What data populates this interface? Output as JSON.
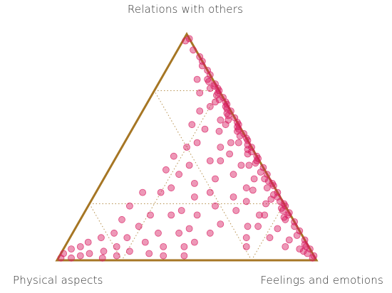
{
  "chart_data": {
    "type": "scatter",
    "subtype": "ternary",
    "axes": {
      "top": "Relations with others",
      "left": "Physical aspects",
      "right": "Feelings and emotions"
    },
    "grid": "dotted inner triangle at 0.5 level",
    "colors": {
      "frame": "#A67624",
      "points": "#D81B60",
      "grid": "#A67624"
    },
    "points_note": "points are [physical, relations, feelings] fractions summing to 1",
    "points": [
      [
        0.02,
        0.97,
        0.01
      ],
      [
        0.0,
        0.98,
        0.02
      ],
      [
        0.01,
        0.93,
        0.06
      ],
      [
        0.0,
        0.9,
        0.1
      ],
      [
        0.0,
        0.88,
        0.12
      ],
      [
        0.01,
        0.86,
        0.13
      ],
      [
        0.0,
        0.84,
        0.16
      ],
      [
        0.0,
        0.82,
        0.18
      ],
      [
        0.02,
        0.8,
        0.18
      ],
      [
        0.0,
        0.78,
        0.22
      ],
      [
        0.01,
        0.77,
        0.22
      ],
      [
        0.0,
        0.75,
        0.25
      ],
      [
        0.03,
        0.76,
        0.21
      ],
      [
        0.0,
        0.72,
        0.28
      ],
      [
        0.02,
        0.73,
        0.25
      ],
      [
        0.0,
        0.7,
        0.3
      ],
      [
        0.01,
        0.68,
        0.31
      ],
      [
        0.04,
        0.7,
        0.26
      ],
      [
        0.0,
        0.66,
        0.34
      ],
      [
        0.02,
        0.65,
        0.33
      ],
      [
        0.0,
        0.63,
        0.37
      ],
      [
        0.03,
        0.62,
        0.35
      ],
      [
        0.0,
        0.6,
        0.4
      ],
      [
        0.01,
        0.58,
        0.41
      ],
      [
        0.05,
        0.6,
        0.35
      ],
      [
        0.0,
        0.56,
        0.44
      ],
      [
        0.02,
        0.55,
        0.43
      ],
      [
        0.0,
        0.53,
        0.47
      ],
      [
        0.04,
        0.52,
        0.44
      ],
      [
        0.0,
        0.5,
        0.5
      ],
      [
        0.01,
        0.48,
        0.51
      ],
      [
        0.03,
        0.47,
        0.5
      ],
      [
        0.0,
        0.45,
        0.55
      ],
      [
        0.02,
        0.43,
        0.55
      ],
      [
        0.0,
        0.41,
        0.59
      ],
      [
        0.05,
        0.42,
        0.53
      ],
      [
        0.0,
        0.38,
        0.62
      ],
      [
        0.02,
        0.36,
        0.62
      ],
      [
        0.0,
        0.34,
        0.66
      ],
      [
        0.03,
        0.32,
        0.65
      ],
      [
        0.0,
        0.3,
        0.7
      ],
      [
        0.01,
        0.28,
        0.71
      ],
      [
        0.04,
        0.27,
        0.69
      ],
      [
        0.0,
        0.25,
        0.75
      ],
      [
        0.02,
        0.23,
        0.75
      ],
      [
        0.0,
        0.21,
        0.79
      ],
      [
        0.03,
        0.19,
        0.78
      ],
      [
        0.0,
        0.17,
        0.83
      ],
      [
        0.01,
        0.15,
        0.84
      ],
      [
        0.0,
        0.13,
        0.87
      ],
      [
        0.02,
        0.11,
        0.87
      ],
      [
        0.0,
        0.09,
        0.91
      ],
      [
        0.01,
        0.07,
        0.92
      ],
      [
        0.0,
        0.05,
        0.95
      ],
      [
        0.02,
        0.03,
        0.95
      ],
      [
        0.0,
        0.02,
        0.98
      ],
      [
        0.01,
        0.01,
        0.98
      ],
      [
        0.03,
        0.04,
        0.93
      ],
      [
        0.01,
        0.06,
        0.93
      ],
      [
        0.04,
        0.05,
        0.91
      ],
      [
        0.06,
        0.8,
        0.14
      ],
      [
        0.08,
        0.74,
        0.18
      ],
      [
        0.07,
        0.68,
        0.25
      ],
      [
        0.06,
        0.62,
        0.32
      ],
      [
        0.09,
        0.57,
        0.34
      ],
      [
        0.07,
        0.52,
        0.41
      ],
      [
        0.1,
        0.47,
        0.43
      ],
      [
        0.08,
        0.42,
        0.5
      ],
      [
        0.06,
        0.36,
        0.58
      ],
      [
        0.09,
        0.31,
        0.6
      ],
      [
        0.07,
        0.25,
        0.68
      ],
      [
        0.1,
        0.2,
        0.7
      ],
      [
        0.08,
        0.14,
        0.78
      ],
      [
        0.06,
        0.09,
        0.85
      ],
      [
        0.09,
        0.06,
        0.85
      ],
      [
        0.12,
        0.66,
        0.22
      ],
      [
        0.14,
        0.58,
        0.28
      ],
      [
        0.12,
        0.5,
        0.38
      ],
      [
        0.15,
        0.44,
        0.41
      ],
      [
        0.13,
        0.38,
        0.49
      ],
      [
        0.11,
        0.32,
        0.57
      ],
      [
        0.14,
        0.26,
        0.6
      ],
      [
        0.12,
        0.2,
        0.68
      ],
      [
        0.15,
        0.15,
        0.7
      ],
      [
        0.13,
        0.1,
        0.77
      ],
      [
        0.18,
        0.6,
        0.22
      ],
      [
        0.2,
        0.52,
        0.28
      ],
      [
        0.19,
        0.44,
        0.37
      ],
      [
        0.21,
        0.36,
        0.43
      ],
      [
        0.18,
        0.28,
        0.54
      ],
      [
        0.2,
        0.22,
        0.58
      ],
      [
        0.19,
        0.15,
        0.66
      ],
      [
        0.22,
        0.1,
        0.68
      ],
      [
        0.24,
        0.06,
        0.7
      ],
      [
        0.26,
        0.3,
        0.44
      ],
      [
        0.25,
        0.5,
        0.25
      ],
      [
        0.28,
        0.42,
        0.3
      ],
      [
        0.3,
        0.34,
        0.36
      ],
      [
        0.27,
        0.24,
        0.49
      ],
      [
        0.29,
        0.16,
        0.55
      ],
      [
        0.32,
        0.46,
        0.22
      ],
      [
        0.34,
        0.38,
        0.28
      ],
      [
        0.33,
        0.28,
        0.39
      ],
      [
        0.36,
        0.2,
        0.44
      ],
      [
        0.35,
        0.12,
        0.53
      ],
      [
        0.38,
        0.4,
        0.22
      ],
      [
        0.4,
        0.32,
        0.28
      ],
      [
        0.41,
        0.22,
        0.37
      ],
      [
        0.42,
        0.14,
        0.44
      ],
      [
        0.43,
        0.08,
        0.49
      ],
      [
        0.45,
        0.3,
        0.25
      ],
      [
        0.46,
        0.2,
        0.34
      ],
      [
        0.47,
        0.12,
        0.41
      ],
      [
        0.48,
        0.06,
        0.46
      ],
      [
        0.5,
        0.02,
        0.48
      ],
      [
        0.52,
        0.3,
        0.18
      ],
      [
        0.54,
        0.2,
        0.26
      ],
      [
        0.55,
        0.12,
        0.33
      ],
      [
        0.56,
        0.06,
        0.38
      ],
      [
        0.58,
        0.02,
        0.4
      ],
      [
        0.6,
        0.24,
        0.16
      ],
      [
        0.61,
        0.15,
        0.24
      ],
      [
        0.62,
        0.08,
        0.3
      ],
      [
        0.63,
        0.03,
        0.34
      ],
      [
        0.66,
        0.18,
        0.16
      ],
      [
        0.68,
        0.1,
        0.22
      ],
      [
        0.7,
        0.04,
        0.26
      ],
      [
        0.72,
        0.12,
        0.16
      ],
      [
        0.74,
        0.06,
        0.2
      ],
      [
        0.76,
        0.02,
        0.22
      ],
      [
        0.78,
        0.1,
        0.12
      ],
      [
        0.8,
        0.04,
        0.16
      ],
      [
        0.82,
        0.01,
        0.17
      ],
      [
        0.84,
        0.08,
        0.08
      ],
      [
        0.86,
        0.03,
        0.11
      ],
      [
        0.88,
        0.06,
        0.06
      ],
      [
        0.9,
        0.02,
        0.08
      ],
      [
        0.92,
        0.05,
        0.03
      ],
      [
        0.94,
        0.01,
        0.05
      ],
      [
        0.96,
        0.03,
        0.01
      ],
      [
        0.98,
        0.01,
        0.01
      ],
      [
        0.01,
        0.2,
        0.79
      ],
      [
        0.02,
        0.22,
        0.76
      ],
      [
        0.03,
        0.18,
        0.79
      ],
      [
        0.0,
        0.24,
        0.76
      ],
      [
        0.01,
        0.26,
        0.73
      ],
      [
        0.02,
        0.29,
        0.69
      ],
      [
        0.0,
        0.33,
        0.67
      ],
      [
        0.01,
        0.35,
        0.64
      ],
      [
        0.02,
        0.39,
        0.59
      ],
      [
        0.01,
        0.44,
        0.55
      ],
      [
        0.0,
        0.46,
        0.54
      ],
      [
        0.02,
        0.49,
        0.49
      ],
      [
        0.01,
        0.51,
        0.48
      ],
      [
        0.0,
        0.54,
        0.46
      ],
      [
        0.02,
        0.57,
        0.41
      ],
      [
        0.01,
        0.59,
        0.4
      ],
      [
        0.0,
        0.61,
        0.39
      ],
      [
        0.02,
        0.64,
        0.34
      ],
      [
        0.01,
        0.67,
        0.32
      ],
      [
        0.0,
        0.69,
        0.31
      ],
      [
        0.02,
        0.71,
        0.27
      ],
      [
        0.01,
        0.74,
        0.25
      ],
      [
        0.0,
        0.76,
        0.24
      ],
      [
        0.02,
        0.79,
        0.19
      ]
    ]
  }
}
